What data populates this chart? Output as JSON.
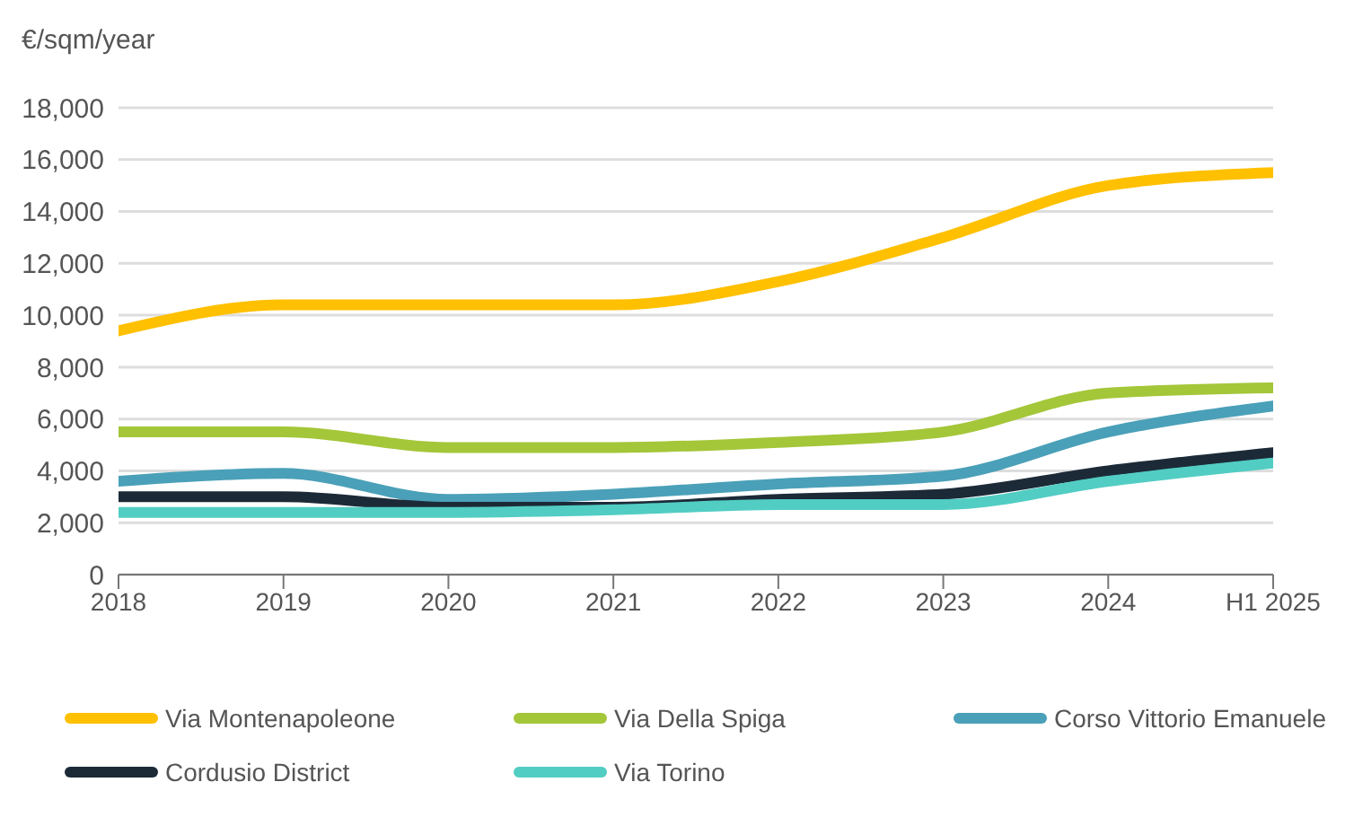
{
  "chart_data": {
    "type": "line",
    "ylabel": "€/sqm/year",
    "categories": [
      "2018",
      "2019",
      "2020",
      "2021",
      "2022",
      "2023",
      "2024",
      "H1 2025"
    ],
    "series": [
      {
        "name": "Via Montenapoleone",
        "color": "#ffc000",
        "values": [
          9400,
          10400,
          10400,
          10400,
          11300,
          13000,
          15000,
          15500
        ]
      },
      {
        "name": "Via Della Spiga",
        "color": "#a4c639",
        "values": [
          5500,
          5500,
          4900,
          4900,
          5100,
          5500,
          7000,
          7200
        ]
      },
      {
        "name": "Corso Vittorio Emanuele",
        "color": "#4aa0b8",
        "values": [
          3600,
          3900,
          2900,
          3100,
          3500,
          3800,
          5500,
          6500
        ]
      },
      {
        "name": "Cordusio District",
        "color": "#1c2a38",
        "values": [
          3000,
          3000,
          2600,
          2600,
          2900,
          3100,
          4000,
          4700
        ]
      },
      {
        "name": "Via Torino",
        "color": "#52cdc3",
        "values": [
          2400,
          2400,
          2400,
          2500,
          2700,
          2700,
          3600,
          4300
        ]
      }
    ],
    "ylim": [
      0,
      18000
    ],
    "yticks": [
      0,
      {
        "value": 2000,
        "label": "2,000"
      },
      {
        "value": 4000,
        "label": "4,000"
      },
      {
        "value": 6000,
        "label": "6,000"
      },
      {
        "value": 8000,
        "label": "8,000"
      },
      {
        "value": 10000,
        "label": "10,000"
      },
      {
        "value": 12000,
        "label": "12,000"
      },
      {
        "value": 14000,
        "label": "14,000"
      },
      {
        "value": 16000,
        "label": "16,000"
      },
      {
        "value": 18000,
        "label": "18,000"
      }
    ],
    "grid": "y",
    "legend": "bottom",
    "marker": "none",
    "line_style": "solid"
  }
}
